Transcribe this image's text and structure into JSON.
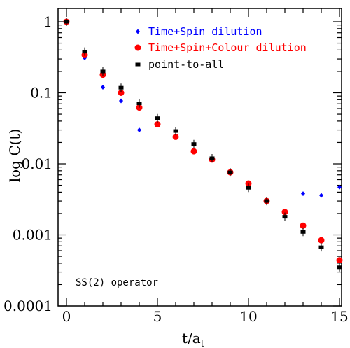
{
  "chart_data": {
    "type": "scatter",
    "title": "",
    "xlabel": "t/a",
    "xlabel_sub": "t",
    "ylabel": "log C(t)",
    "xlim": [
      0,
      15
    ],
    "ylim": [
      0.0001,
      1.6
    ],
    "yscale": "log",
    "x_ticks": [
      0,
      5,
      10,
      15
    ],
    "x_tick_labels": [
      "0",
      "5",
      "10",
      "15"
    ],
    "y_ticks": [
      0.0001,
      0.001,
      0.01,
      0.1,
      1
    ],
    "y_tick_labels": [
      "0.0001",
      "0.001",
      "0.01",
      "0.1",
      "1"
    ],
    "grid": false,
    "legend_position": "top-right",
    "annotation": "SS(2) operator",
    "series": [
      {
        "name": "Time+Spin dilution",
        "color": "#0000ff",
        "marker": "diamond",
        "x": [
          0,
          1,
          2,
          3,
          4,
          13,
          14,
          15
        ],
        "y": [
          1.0,
          0.31,
          0.12,
          0.077,
          0.03,
          0.0038,
          0.0036,
          0.0047
        ]
      },
      {
        "name": "Time+Spin+Colour dilution",
        "color": "#ff0000",
        "marker": "circle",
        "x": [
          0,
          1,
          2,
          3,
          4,
          5,
          6,
          7,
          8,
          9,
          10,
          11,
          12,
          13,
          14,
          15
        ],
        "y": [
          1.0,
          0.34,
          0.18,
          0.1,
          0.062,
          0.036,
          0.024,
          0.015,
          0.0115,
          0.0076,
          0.0053,
          0.003,
          0.0021,
          0.00135,
          0.00084,
          0.00044
        ]
      },
      {
        "name": "point-to-all",
        "color": "#000000",
        "marker": "square",
        "x": [
          0,
          1,
          2,
          3,
          4,
          5,
          6,
          7,
          8,
          9,
          10,
          11,
          12,
          13,
          14,
          15
        ],
        "y": [
          1.0,
          0.38,
          0.2,
          0.118,
          0.071,
          0.044,
          0.029,
          0.019,
          0.012,
          0.0076,
          0.0046,
          0.003,
          0.0018,
          0.0011,
          0.00067,
          0.00035
        ]
      }
    ]
  }
}
